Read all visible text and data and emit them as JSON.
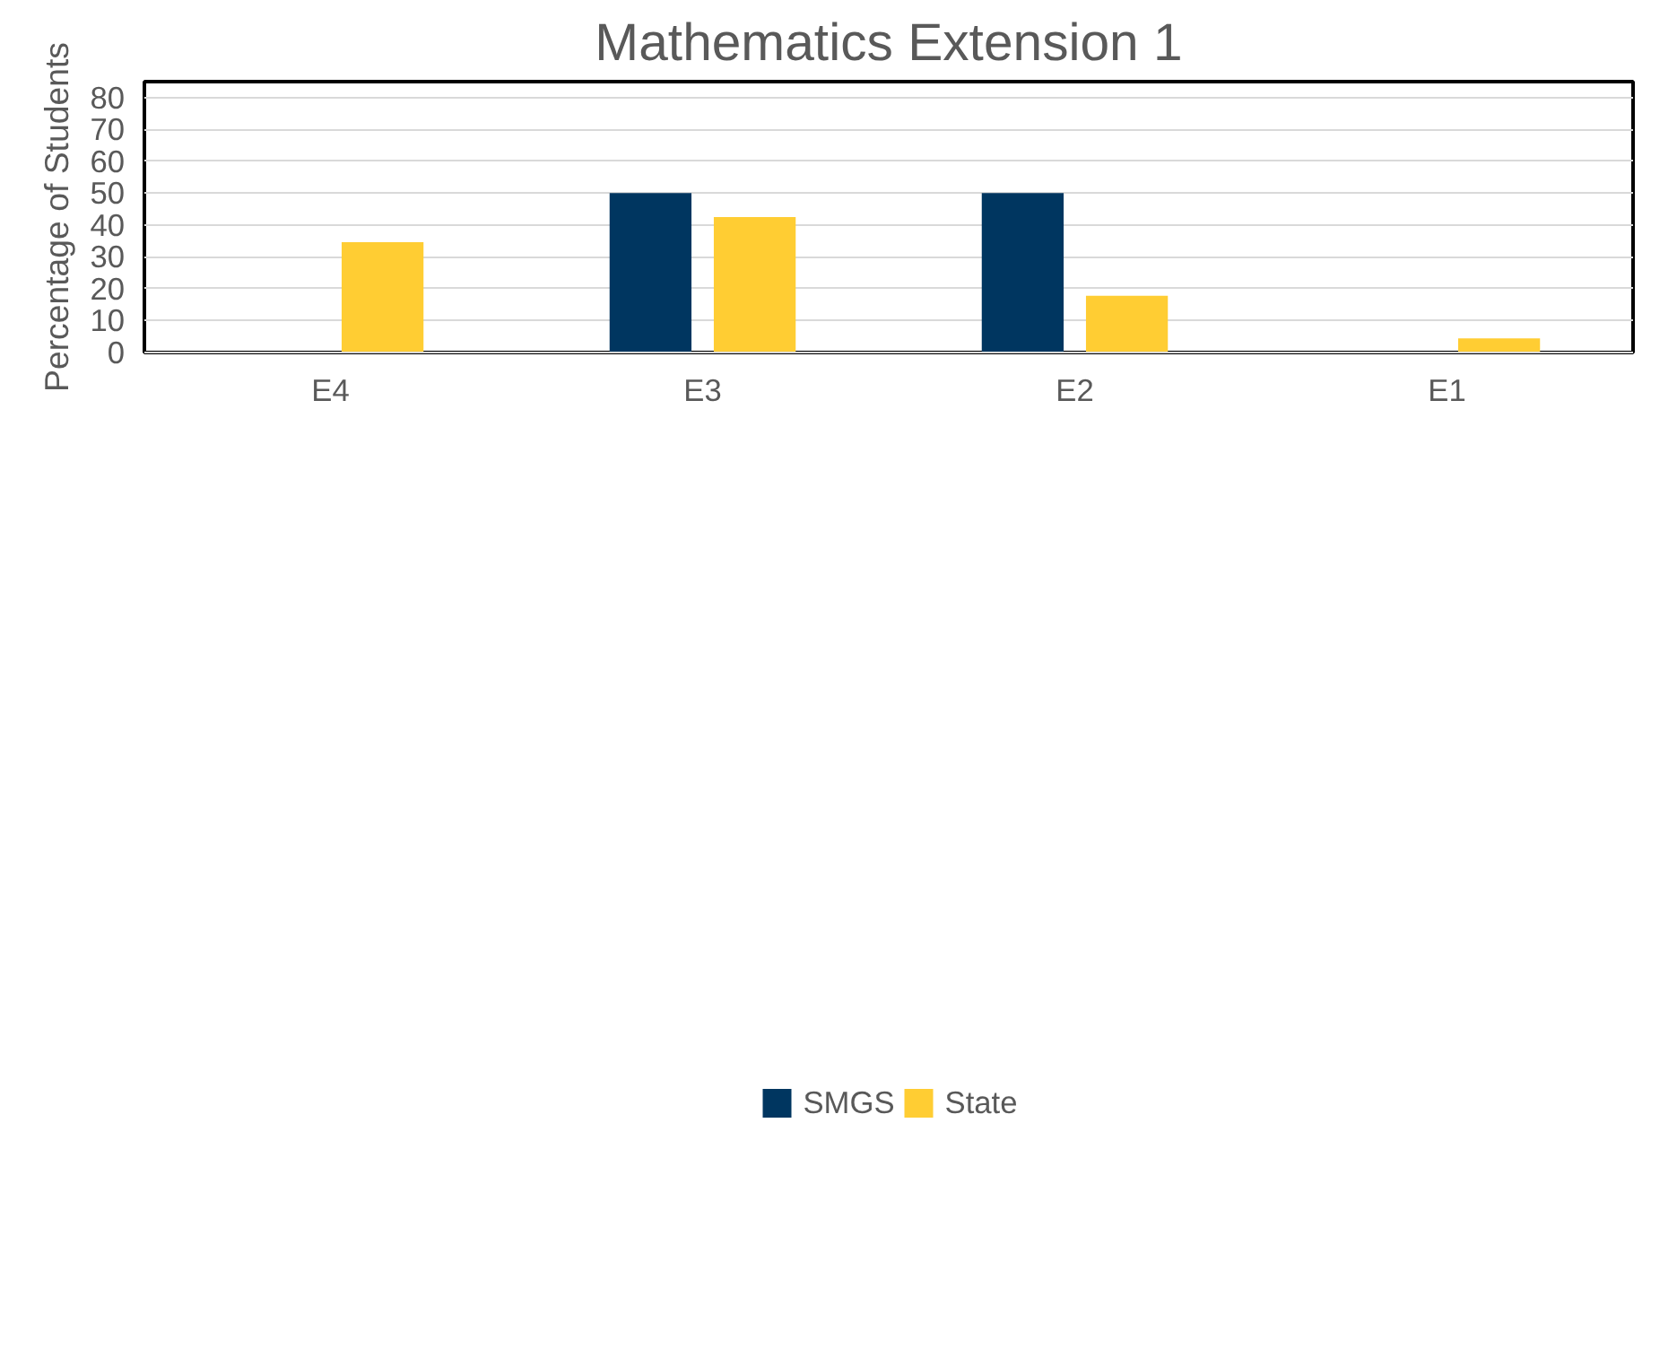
{
  "chart_data": {
    "type": "bar",
    "title": "Mathematics Extension 1",
    "ylabel": "Percentage of Students",
    "categories": [
      "E4",
      "E3",
      "E2",
      "E1"
    ],
    "series": [
      {
        "name": "SMGS",
        "color": "#003660",
        "values": [
          0,
          50,
          50,
          0
        ]
      },
      {
        "name": "State",
        "color": "#ffcd33",
        "values": [
          34.6,
          42.5,
          17.8,
          4.4
        ]
      }
    ],
    "ylim": [
      0,
      85
    ],
    "yticks": [
      0,
      10,
      20,
      30,
      40,
      50,
      60,
      70,
      80
    ],
    "grid": "y",
    "legend": "bottom"
  }
}
